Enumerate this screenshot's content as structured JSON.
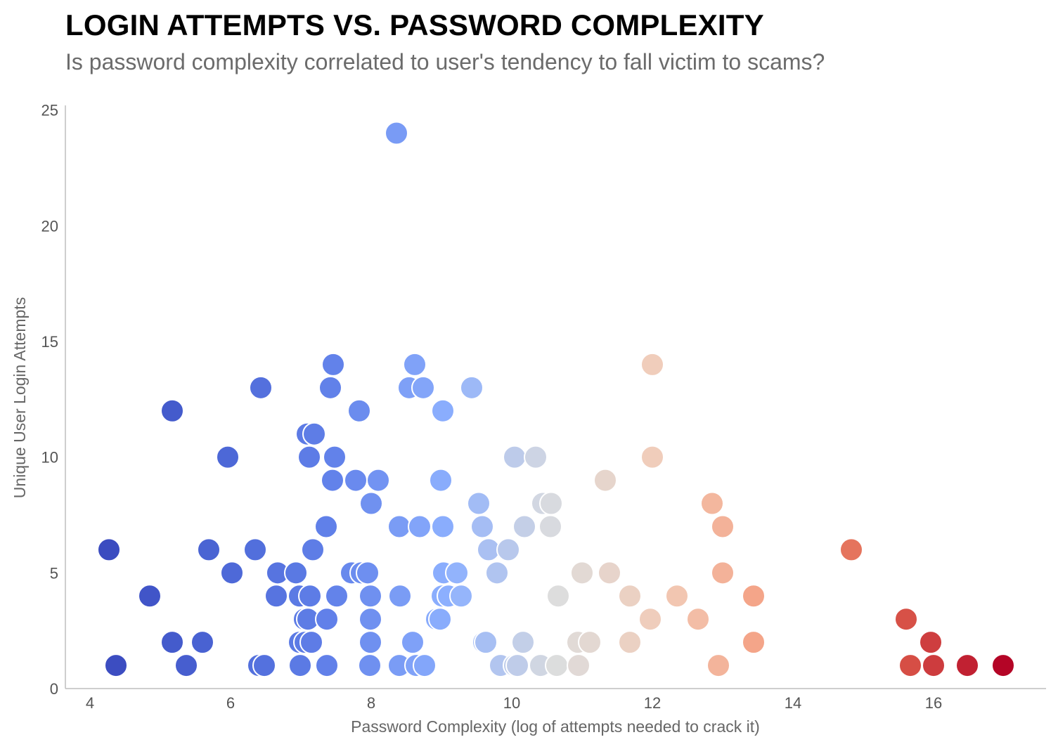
{
  "chart_data": {
    "type": "scatter",
    "title": "LOGIN ATTEMPTS VS. PASSWORD COMPLEXITY",
    "subtitle": "Is password complexity correlated to user's tendency to fall victim to scams?",
    "xlabel": "Password Complexity (log of attempts needed to crack it)",
    "ylabel": "Unique User Login Attempts",
    "xlim": [
      3.65,
      17.6
    ],
    "ylim": [
      0,
      25.2
    ],
    "xticks": [
      4,
      6,
      8,
      10,
      12,
      14,
      16
    ],
    "yticks": [
      0,
      5,
      10,
      15,
      20,
      25
    ],
    "grid": false,
    "legend": "none",
    "color_scale": "coolwarm",
    "color_range": [
      4.3,
      17.0
    ],
    "points": [
      {
        "x": 4.27,
        "y": 6
      },
      {
        "x": 4.37,
        "y": 1
      },
      {
        "x": 4.85,
        "y": 4
      },
      {
        "x": 5.17,
        "y": 12
      },
      {
        "x": 5.17,
        "y": 2
      },
      {
        "x": 5.37,
        "y": 1
      },
      {
        "x": 5.6,
        "y": 2
      },
      {
        "x": 5.69,
        "y": 6
      },
      {
        "x": 5.96,
        "y": 10
      },
      {
        "x": 6.02,
        "y": 5
      },
      {
        "x": 6.35,
        "y": 6
      },
      {
        "x": 6.43,
        "y": 13
      },
      {
        "x": 6.4,
        "y": 1
      },
      {
        "x": 6.48,
        "y": 1
      },
      {
        "x": 6.65,
        "y": 4
      },
      {
        "x": 6.67,
        "y": 5
      },
      {
        "x": 6.93,
        "y": 5
      },
      {
        "x": 6.98,
        "y": 2
      },
      {
        "x": 6.98,
        "y": 4
      },
      {
        "x": 6.99,
        "y": 1
      },
      {
        "x": 7.05,
        "y": 3
      },
      {
        "x": 7.06,
        "y": 2
      },
      {
        "x": 7.09,
        "y": 11
      },
      {
        "x": 7.12,
        "y": 10
      },
      {
        "x": 7.1,
        "y": 3
      },
      {
        "x": 7.13,
        "y": 4
      },
      {
        "x": 7.15,
        "y": 2
      },
      {
        "x": 7.17,
        "y": 6
      },
      {
        "x": 7.19,
        "y": 11
      },
      {
        "x": 7.36,
        "y": 7
      },
      {
        "x": 7.37,
        "y": 3
      },
      {
        "x": 7.37,
        "y": 1
      },
      {
        "x": 7.42,
        "y": 13
      },
      {
        "x": 7.45,
        "y": 9
      },
      {
        "x": 7.46,
        "y": 14
      },
      {
        "x": 7.48,
        "y": 10
      },
      {
        "x": 7.51,
        "y": 4
      },
      {
        "x": 7.72,
        "y": 5
      },
      {
        "x": 7.78,
        "y": 9
      },
      {
        "x": 7.83,
        "y": 12
      },
      {
        "x": 7.86,
        "y": 5
      },
      {
        "x": 7.95,
        "y": 5
      },
      {
        "x": 7.98,
        "y": 1
      },
      {
        "x": 7.99,
        "y": 2
      },
      {
        "x": 7.99,
        "y": 3
      },
      {
        "x": 7.99,
        "y": 4
      },
      {
        "x": 8.0,
        "y": 8
      },
      {
        "x": 8.1,
        "y": 9
      },
      {
        "x": 8.36,
        "y": 24
      },
      {
        "x": 8.4,
        "y": 1
      },
      {
        "x": 8.41,
        "y": 4
      },
      {
        "x": 8.4,
        "y": 7
      },
      {
        "x": 8.54,
        "y": 13
      },
      {
        "x": 8.59,
        "y": 2
      },
      {
        "x": 8.62,
        "y": 14
      },
      {
        "x": 8.64,
        "y": 1
      },
      {
        "x": 8.69,
        "y": 7
      },
      {
        "x": 8.74,
        "y": 13
      },
      {
        "x": 8.76,
        "y": 1
      },
      {
        "x": 8.93,
        "y": 3
      },
      {
        "x": 8.98,
        "y": 3
      },
      {
        "x": 8.99,
        "y": 9
      },
      {
        "x": 9.01,
        "y": 4
      },
      {
        "x": 9.02,
        "y": 7
      },
      {
        "x": 9.02,
        "y": 12
      },
      {
        "x": 9.03,
        "y": 5
      },
      {
        "x": 9.1,
        "y": 4
      },
      {
        "x": 9.22,
        "y": 5
      },
      {
        "x": 9.28,
        "y": 4
      },
      {
        "x": 9.43,
        "y": 13
      },
      {
        "x": 9.53,
        "y": 8
      },
      {
        "x": 9.58,
        "y": 7
      },
      {
        "x": 9.6,
        "y": 2
      },
      {
        "x": 9.63,
        "y": 2
      },
      {
        "x": 9.67,
        "y": 6
      },
      {
        "x": 9.79,
        "y": 5
      },
      {
        "x": 9.84,
        "y": 1
      },
      {
        "x": 9.95,
        "y": 6
      },
      {
        "x": 10.04,
        "y": 10
      },
      {
        "x": 10.04,
        "y": 1
      },
      {
        "x": 10.08,
        "y": 1
      },
      {
        "x": 10.16,
        "y": 2
      },
      {
        "x": 10.18,
        "y": 7
      },
      {
        "x": 10.34,
        "y": 10
      },
      {
        "x": 10.41,
        "y": 1
      },
      {
        "x": 10.44,
        "y": 8
      },
      {
        "x": 10.55,
        "y": 7
      },
      {
        "x": 10.56,
        "y": 8
      },
      {
        "x": 10.64,
        "y": 1
      },
      {
        "x": 10.66,
        "y": 4
      },
      {
        "x": 10.94,
        "y": 2
      },
      {
        "x": 10.95,
        "y": 1
      },
      {
        "x": 11.0,
        "y": 5
      },
      {
        "x": 11.11,
        "y": 2
      },
      {
        "x": 11.33,
        "y": 9
      },
      {
        "x": 11.39,
        "y": 5
      },
      {
        "x": 11.68,
        "y": 4
      },
      {
        "x": 11.68,
        "y": 2
      },
      {
        "x": 11.97,
        "y": 3
      },
      {
        "x": 12.0,
        "y": 14
      },
      {
        "x": 12.0,
        "y": 10
      },
      {
        "x": 12.35,
        "y": 4
      },
      {
        "x": 12.65,
        "y": 3
      },
      {
        "x": 12.85,
        "y": 8
      },
      {
        "x": 12.94,
        "y": 1
      },
      {
        "x": 13.0,
        "y": 7
      },
      {
        "x": 13.0,
        "y": 5
      },
      {
        "x": 13.44,
        "y": 4
      },
      {
        "x": 13.44,
        "y": 2
      },
      {
        "x": 14.83,
        "y": 6
      },
      {
        "x": 15.61,
        "y": 3
      },
      {
        "x": 15.67,
        "y": 1
      },
      {
        "x": 15.96,
        "y": 2
      },
      {
        "x": 16.0,
        "y": 1
      },
      {
        "x": 16.48,
        "y": 1
      },
      {
        "x": 16.99,
        "y": 1
      }
    ]
  }
}
